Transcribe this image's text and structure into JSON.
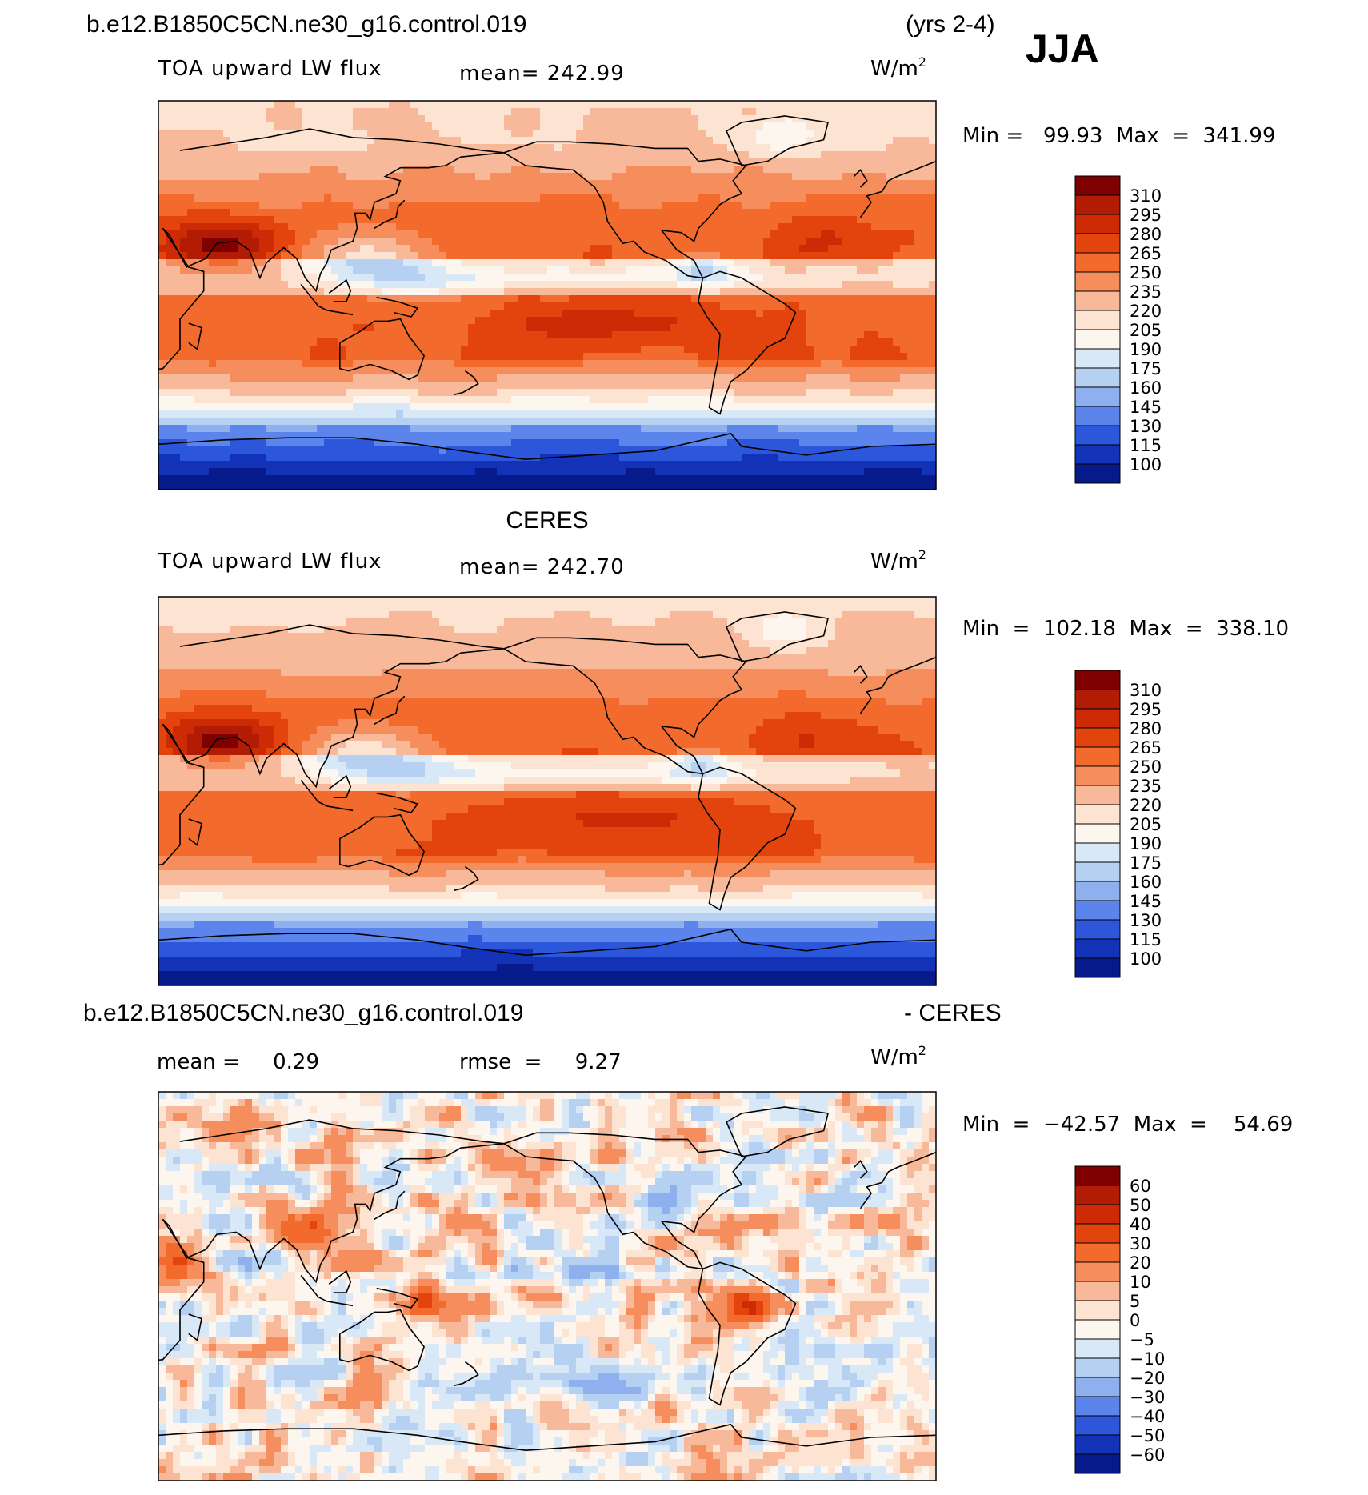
{
  "header": {
    "case_name": "b.e12.B1850C5CN.ne30_g16.control.019",
    "years": "(yrs 2-4)",
    "season": "JJA"
  },
  "panels": [
    {
      "id": "model",
      "title": "",
      "variable": "TOA upward LW flux",
      "stat1": "mean=  242.99",
      "stat2": "",
      "units": "W/m",
      "units_sup": "2",
      "minmax": "Min =   99.93  Max  =  341.99",
      "colorbar_labels": [
        "310",
        "295",
        "280",
        "265",
        "250",
        "235",
        "220",
        "205",
        "190",
        "175",
        "160",
        "145",
        "130",
        "115",
        "100"
      ],
      "colorbar_colors": [
        "#7f0000",
        "#b21c04",
        "#cc2b06",
        "#e3440d",
        "#f26a2c",
        "#f58e5c",
        "#f8b89a",
        "#fde4d2",
        "#fdf6ef",
        "#d8e8f6",
        "#b6d0f2",
        "#8fb0ef",
        "#5b85ea",
        "#2d57db",
        "#1232b8",
        "#071a8c"
      ]
    },
    {
      "id": "obs",
      "title": "CERES",
      "variable": "TOA upward LW flux",
      "stat1": "mean=  242.70",
      "stat2": "",
      "units": "W/m",
      "units_sup": "2",
      "minmax": "Min  =  102.18  Max  =  338.10",
      "colorbar_labels": [
        "310",
        "295",
        "280",
        "265",
        "250",
        "235",
        "220",
        "205",
        "190",
        "175",
        "160",
        "145",
        "130",
        "115",
        "100"
      ],
      "colorbar_colors": [
        "#7f0000",
        "#b21c04",
        "#cc2b06",
        "#e3440d",
        "#f26a2c",
        "#f58e5c",
        "#f8b89a",
        "#fde4d2",
        "#fdf6ef",
        "#d8e8f6",
        "#b6d0f2",
        "#8fb0ef",
        "#5b85ea",
        "#2d57db",
        "#1232b8",
        "#071a8c"
      ]
    },
    {
      "id": "diff",
      "title": "b.e12.B1850C5CN.ne30_g16.control.019",
      "title_right": "- CERES",
      "variable": "",
      "stat1": "mean =     0.29",
      "stat2": "rmse  =     9.27",
      "units": "W/m",
      "units_sup": "2",
      "minmax": "Min  =  −42.57  Max  =    54.69",
      "colorbar_labels": [
        "60",
        "50",
        "40",
        "30",
        "20",
        "10",
        "5",
        "0",
        "−5",
        "−10",
        "−20",
        "−30",
        "−40",
        "−50",
        "−60"
      ],
      "colorbar_colors": [
        "#7f0000",
        "#b21c04",
        "#cc2b06",
        "#e3440d",
        "#f26a2c",
        "#f58e5c",
        "#f8b89a",
        "#fde4d2",
        "#fdf6ef",
        "#d8e8f6",
        "#b6d0f2",
        "#8fb0ef",
        "#5b85ea",
        "#2d57db",
        "#1232b8",
        "#071a8c"
      ]
    }
  ],
  "chart_data": [
    {
      "type": "heatmap",
      "title": "TOA upward LW flux",
      "mean": 242.99,
      "min": 99.93,
      "max": 341.99,
      "units": "W/m2",
      "contour_levels": [
        100,
        115,
        130,
        145,
        160,
        175,
        190,
        205,
        220,
        235,
        250,
        265,
        280,
        295,
        310
      ]
    },
    {
      "type": "heatmap",
      "title": "CERES",
      "mean": 242.7,
      "min": 102.18,
      "max": 338.1,
      "units": "W/m2",
      "contour_levels": [
        100,
        115,
        130,
        145,
        160,
        175,
        190,
        205,
        220,
        235,
        250,
        265,
        280,
        295,
        310
      ]
    },
    {
      "type": "heatmap",
      "title": "b.e12.B1850C5CN.ne30_g16.control.019 - CERES",
      "mean": 0.29,
      "rmse": 9.27,
      "min": -42.57,
      "max": 54.69,
      "units": "W/m2",
      "contour_levels": [
        -60,
        -50,
        -40,
        -30,
        -20,
        -10,
        -5,
        0,
        5,
        10,
        20,
        30,
        40,
        50,
        60
      ]
    }
  ]
}
